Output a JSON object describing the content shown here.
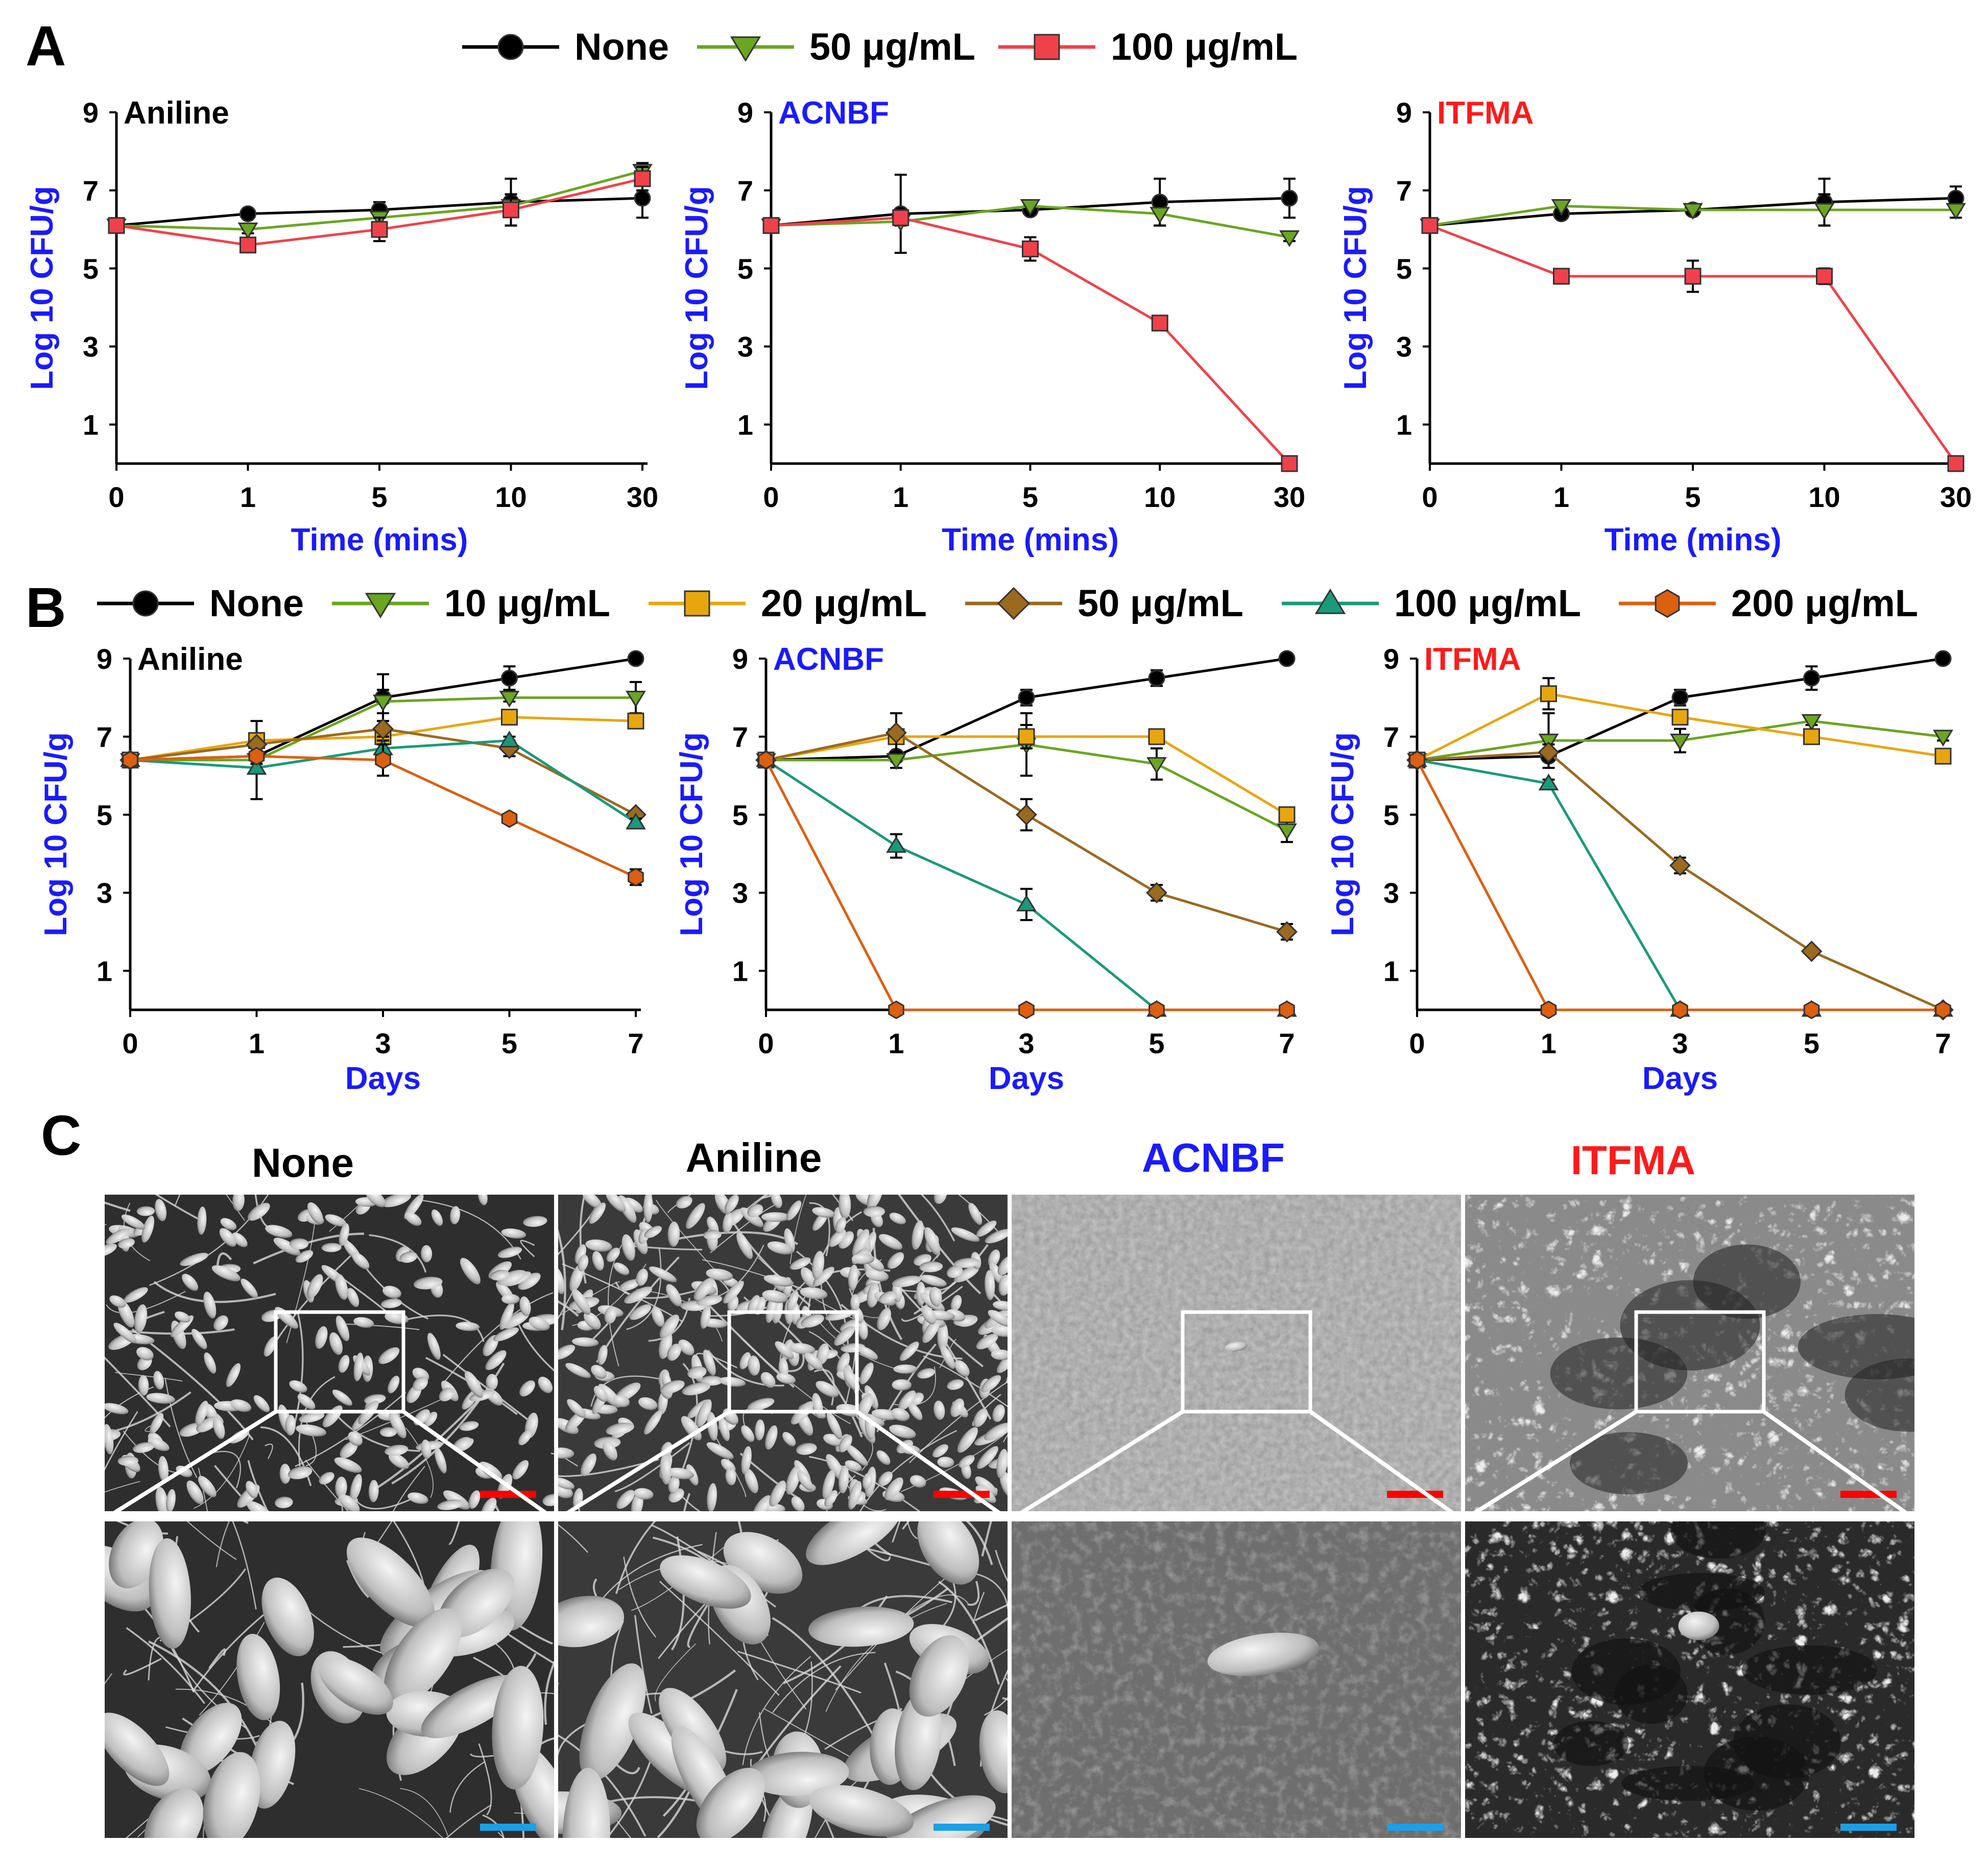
{
  "panel_labels": [
    "A",
    "B",
    "C"
  ],
  "colors": {
    "none": "#000000",
    "c10": "#6aa621",
    "c20": "#e8a60e",
    "c50": "#9b6a1f",
    "c100": "#1a9a7a",
    "c200": "#dd5f10",
    "a50": "#6aa621",
    "a100": "#f0414b",
    "axis_title": "#1a1aff",
    "aniline_title": "#000000",
    "acnbf_title": "#1a1aff",
    "itfma_title": "#ff1a1a",
    "scale_red": "#ff0000",
    "scale_blue": "#1aa0e6"
  },
  "legend_A": [
    {
      "label": "None",
      "color": "#000000",
      "marker": "circle"
    },
    {
      "label": "50 μg/mL",
      "color": "#6aa621",
      "marker": "triangle-down"
    },
    {
      "label": "100 μg/mL",
      "color": "#f0414b",
      "marker": "square"
    }
  ],
  "legend_B": [
    {
      "label": "None",
      "color": "#000000",
      "marker": "circle"
    },
    {
      "label": "10 μg/mL",
      "color": "#6aa621",
      "marker": "triangle-down"
    },
    {
      "label": "20 μg/mL",
      "color": "#e8a60e",
      "marker": "square"
    },
    {
      "label": "50 μg/mL",
      "color": "#9b6a1f",
      "marker": "diamond"
    },
    {
      "label": "100 μg/mL",
      "color": "#1a9a7a",
      "marker": "triangle-up"
    },
    {
      "label": "200 μg/mL",
      "color": "#dd5f10",
      "marker": "hexagon"
    }
  ],
  "chart_data": [
    {
      "type": "line",
      "panel": "A",
      "title": "Aniline",
      "title_color": "#000000",
      "xlabel": "Time (mins)",
      "ylabel": "Log 10 CFU/g",
      "categories": [
        "0",
        "1",
        "5",
        "10",
        "30"
      ],
      "yticks": [
        1,
        3,
        5,
        7,
        9
      ],
      "ylim": [
        0,
        9
      ],
      "series": [
        {
          "name": "None",
          "values": [
            6.1,
            6.4,
            6.5,
            6.7,
            6.8
          ],
          "errors": [
            0,
            0.1,
            0.2,
            0.6,
            0.5
          ]
        },
        {
          "name": "50 μg/mL",
          "values": [
            6.1,
            6.0,
            6.3,
            6.6,
            7.5
          ],
          "errors": [
            0,
            0.1,
            0.2,
            0.2,
            0.2
          ]
        },
        {
          "name": "100 μg/mL",
          "values": [
            6.1,
            5.6,
            6.0,
            6.5,
            7.3
          ],
          "errors": [
            0,
            0.1,
            0.3,
            0.4,
            0.3
          ]
        }
      ]
    },
    {
      "type": "line",
      "panel": "A",
      "title": "ACNBF",
      "title_color": "#1a1aff",
      "xlabel": "Time (mins)",
      "ylabel": "Log 10 CFU/g",
      "categories": [
        "0",
        "1",
        "5",
        "10",
        "30"
      ],
      "yticks": [
        1,
        3,
        5,
        7,
        9
      ],
      "ylim": [
        0,
        9
      ],
      "series": [
        {
          "name": "None",
          "values": [
            6.1,
            6.4,
            6.5,
            6.7,
            6.8
          ],
          "errors": [
            0,
            1.0,
            0.1,
            0.6,
            0.5
          ]
        },
        {
          "name": "50 μg/mL",
          "values": [
            6.1,
            6.2,
            6.6,
            6.4,
            5.8
          ],
          "errors": [
            0,
            0.1,
            0.1,
            0.3,
            0.1
          ]
        },
        {
          "name": "100 μg/mL",
          "values": [
            6.1,
            6.3,
            5.5,
            3.6,
            0.0
          ],
          "errors": [
            0,
            0.1,
            0.3,
            0.05,
            0
          ]
        }
      ]
    },
    {
      "type": "line",
      "panel": "A",
      "title": "ITFMA",
      "title_color": "#ff1a1a",
      "xlabel": "Time (mins)",
      "ylabel": "Log 10 CFU/g",
      "categories": [
        "0",
        "1",
        "5",
        "10",
        "30"
      ],
      "yticks": [
        1,
        3,
        5,
        7,
        9
      ],
      "ylim": [
        0,
        9
      ],
      "series": [
        {
          "name": "None",
          "values": [
            6.1,
            6.4,
            6.5,
            6.7,
            6.8
          ],
          "errors": [
            0,
            0.1,
            0.1,
            0.6,
            0.3
          ]
        },
        {
          "name": "50 μg/mL",
          "values": [
            6.1,
            6.6,
            6.5,
            6.5,
            6.5
          ],
          "errors": [
            0,
            0.1,
            0.1,
            0.4,
            0.2
          ]
        },
        {
          "name": "100 μg/mL",
          "values": [
            6.1,
            4.8,
            4.8,
            4.8,
            0.0
          ],
          "errors": [
            0,
            0.1,
            0.4,
            0.2,
            0
          ]
        }
      ]
    },
    {
      "type": "line",
      "panel": "B",
      "title": "Aniline",
      "title_color": "#000000",
      "xlabel": "Days",
      "ylabel": "Log 10 CFU/g",
      "categories": [
        "0",
        "1",
        "3",
        "5",
        "7"
      ],
      "yticks": [
        1,
        3,
        5,
        7,
        9
      ],
      "ylim": [
        0,
        9
      ],
      "series": [
        {
          "name": "None",
          "values": [
            6.4,
            6.5,
            8.0,
            8.5,
            9.0
          ],
          "errors": [
            0,
            0.1,
            0.6,
            0.3,
            0.1
          ]
        },
        {
          "name": "10 μg/mL",
          "values": [
            6.4,
            6.4,
            7.9,
            8.0,
            8.0
          ],
          "errors": [
            0,
            1.0,
            0.3,
            0.1,
            0.4
          ]
        },
        {
          "name": "20 μg/mL",
          "values": [
            6.4,
            6.9,
            7.0,
            7.5,
            7.4
          ],
          "errors": [
            0,
            0.1,
            0.1,
            0.1,
            0.1
          ]
        },
        {
          "name": "50 μg/mL",
          "values": [
            6.4,
            6.8,
            7.2,
            6.7,
            5.0
          ],
          "errors": [
            0,
            0.1,
            0.2,
            0.2,
            0.1
          ]
        },
        {
          "name": "100 μg/mL",
          "values": [
            6.4,
            6.2,
            6.7,
            6.9,
            4.8
          ],
          "errors": [
            0,
            0.1,
            0.2,
            0.1,
            0.1
          ]
        },
        {
          "name": "200 μg/mL",
          "values": [
            6.4,
            6.5,
            6.4,
            4.9,
            3.4
          ],
          "errors": [
            0,
            0.1,
            0.4,
            0.1,
            0.2
          ]
        }
      ]
    },
    {
      "type": "line",
      "panel": "B",
      "title": "ACNBF",
      "title_color": "#1a1aff",
      "xlabel": "Days",
      "ylabel": "Log 10 CFU/g",
      "categories": [
        "0",
        "1",
        "3",
        "5",
        "7"
      ],
      "yticks": [
        1,
        3,
        5,
        7,
        9
      ],
      "ylim": [
        0,
        9
      ],
      "series": [
        {
          "name": "None",
          "values": [
            6.4,
            6.5,
            8.0,
            8.5,
            9.0
          ],
          "errors": [
            0,
            0.1,
            0.2,
            0.2,
            0.1
          ]
        },
        {
          "name": "10 μg/mL",
          "values": [
            6.4,
            6.4,
            6.8,
            6.3,
            4.6
          ],
          "errors": [
            0,
            0.2,
            0.8,
            0.4,
            0.3
          ]
        },
        {
          "name": "20 μg/mL",
          "values": [
            6.4,
            7.0,
            7.0,
            7.0,
            5.0
          ],
          "errors": [
            0,
            0.1,
            0.3,
            0.1,
            0.1
          ]
        },
        {
          "name": "50 μg/mL",
          "values": [
            6.4,
            7.1,
            5.0,
            3.0,
            2.0
          ],
          "errors": [
            0,
            0.5,
            0.4,
            0.2,
            0.2
          ]
        },
        {
          "name": "100 μg/mL",
          "values": [
            6.4,
            4.2,
            2.7,
            0.0,
            0.0
          ],
          "errors": [
            0,
            0.3,
            0.4,
            0,
            0
          ]
        },
        {
          "name": "200 μg/mL",
          "values": [
            6.4,
            0.0,
            0.0,
            0.0,
            0.0
          ],
          "errors": [
            0,
            0,
            0,
            0,
            0
          ]
        }
      ]
    },
    {
      "type": "line",
      "panel": "B",
      "title": "ITFMA",
      "title_color": "#ff1a1a",
      "xlabel": "Days",
      "ylabel": "Log 10 CFU/g",
      "categories": [
        "0",
        "1",
        "3",
        "5",
        "7"
      ],
      "yticks": [
        1,
        3,
        5,
        7,
        9
      ],
      "ylim": [
        0,
        9
      ],
      "series": [
        {
          "name": "None",
          "values": [
            6.4,
            6.5,
            8.0,
            8.5,
            9.0
          ],
          "errors": [
            0,
            0.1,
            0.2,
            0.3,
            0.1
          ]
        },
        {
          "name": "10 μg/mL",
          "values": [
            6.4,
            6.9,
            6.9,
            7.4,
            7.0
          ],
          "errors": [
            0,
            0.7,
            0.3,
            0.1,
            0.1
          ]
        },
        {
          "name": "20 μg/mL",
          "values": [
            6.4,
            8.1,
            7.5,
            7.0,
            6.5
          ],
          "errors": [
            0,
            0.4,
            0.1,
            0.1,
            0.1
          ]
        },
        {
          "name": "50 μg/mL",
          "values": [
            6.4,
            6.6,
            3.7,
            1.5,
            0.0
          ],
          "errors": [
            0,
            0.2,
            0.2,
            0.1,
            0
          ]
        },
        {
          "name": "100 μg/mL",
          "values": [
            6.4,
            5.8,
            0.0,
            0.0,
            0.0
          ],
          "errors": [
            0,
            0.1,
            0,
            0,
            0
          ]
        },
        {
          "name": "200 μg/mL",
          "values": [
            6.4,
            0.0,
            0.0,
            0.0,
            0.0
          ],
          "errors": [
            0,
            0,
            0,
            0,
            0
          ]
        }
      ]
    }
  ],
  "panel_C": {
    "headers": [
      {
        "label": "None",
        "color": "#000000"
      },
      {
        "label": "Aniline",
        "color": "#000000"
      },
      {
        "label": "ACNBF",
        "color": "#1a1aff"
      },
      {
        "label": "ITFMA",
        "color": "#ff1a1a"
      }
    ],
    "images": [
      {
        "name": "none",
        "texture": "bacteria-fibers"
      },
      {
        "name": "aniline",
        "texture": "dense-bacteria"
      },
      {
        "name": "acnbf",
        "texture": "smooth-porous"
      },
      {
        "name": "itfma",
        "texture": "porous-network"
      }
    ]
  }
}
